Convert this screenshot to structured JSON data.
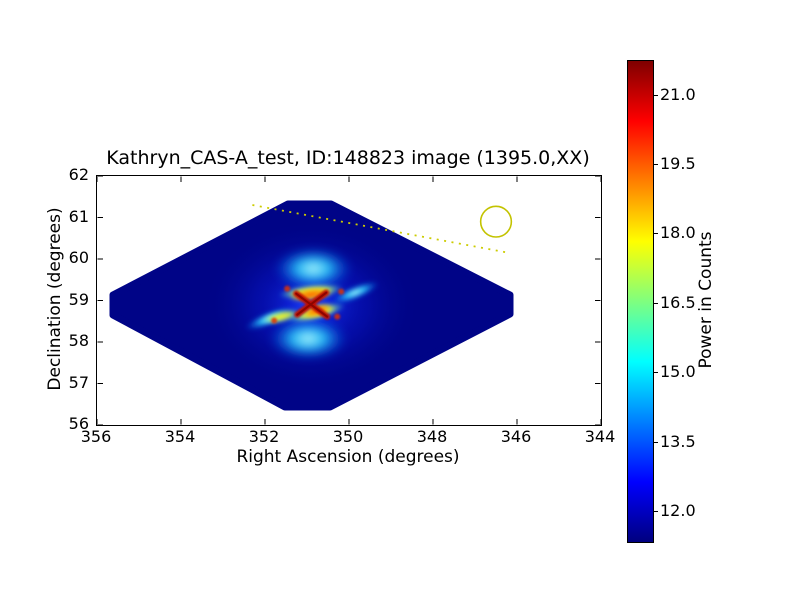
{
  "figure": {
    "background": "#ffffff"
  },
  "chart_data": {
    "type": "heatmap",
    "title": "Kathryn_CAS-A_test, ID:148823 image (1395.0,XX)",
    "xlabel": "Right Ascension (degrees)",
    "ylabel": "Declination (degrees)",
    "xlim": [
      356,
      344
    ],
    "ylim": [
      56,
      62
    ],
    "grid": false,
    "x_ticks": {
      "values": [
        356,
        354,
        352,
        350,
        348,
        346,
        344
      ],
      "labels": [
        "356",
        "354",
        "352",
        "350",
        "348",
        "346",
        "344"
      ]
    },
    "y_ticks": {
      "values": [
        62,
        61,
        60,
        59,
        58,
        57,
        56
      ],
      "labels": [
        "62",
        "61",
        "60",
        "59",
        "58",
        "57",
        "56"
      ]
    },
    "colormap": "jet",
    "field": {
      "shape": "diamond (rounded-corner rhombus) of dark blue background with bright PSF-like X-shaped source at center",
      "background_value": 11.5,
      "peak_value": 21.5,
      "source_center": {
        "ra": 350.9,
        "dec": 58.9
      },
      "extent": {
        "ra_left_tip": 355.6,
        "ra_right_tip": 346.2,
        "dec_top_tip": 61.3,
        "dec_bottom_tip": 56.4
      }
    },
    "colorbar": {
      "label": "Power in Counts",
      "vmin": 11.35,
      "vmax": 21.75,
      "tick_values": [
        21.0,
        19.5,
        18.0,
        16.5,
        15.0,
        13.5,
        12.0
      ],
      "tick_labels": [
        "21.0",
        "19.5",
        "18.0",
        "16.5",
        "15.0",
        "13.5",
        "12.0"
      ],
      "gradient_stops_bottom_to_top": [
        "#00007f",
        "#0000ff",
        "#007fff",
        "#00ffff",
        "#7fff7f",
        "#ffff00",
        "#ff7f00",
        "#ff0000",
        "#7f0000"
      ]
    },
    "annotations": {
      "dotted_line": {
        "ra1": 352.3,
        "dec1": 61.3,
        "ra2": 346.2,
        "dec2": 60.15,
        "color": "#cccc00",
        "style": "dotted"
      },
      "circle": {
        "ra": 346.5,
        "dec": 60.9,
        "radius_deg": 0.37,
        "color": "#c3c300"
      }
    }
  },
  "colors": {
    "field_navy": "#000487",
    "axis_color": "#000000",
    "core_red": "#c01000"
  }
}
